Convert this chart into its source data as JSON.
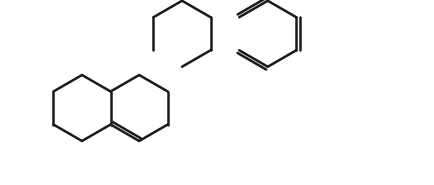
{
  "background_color": "#ffffff",
  "line_color": "#1a1a1a",
  "lw": 1.8,
  "figsize": [
    4.34,
    1.85
  ],
  "dpi": 100
}
